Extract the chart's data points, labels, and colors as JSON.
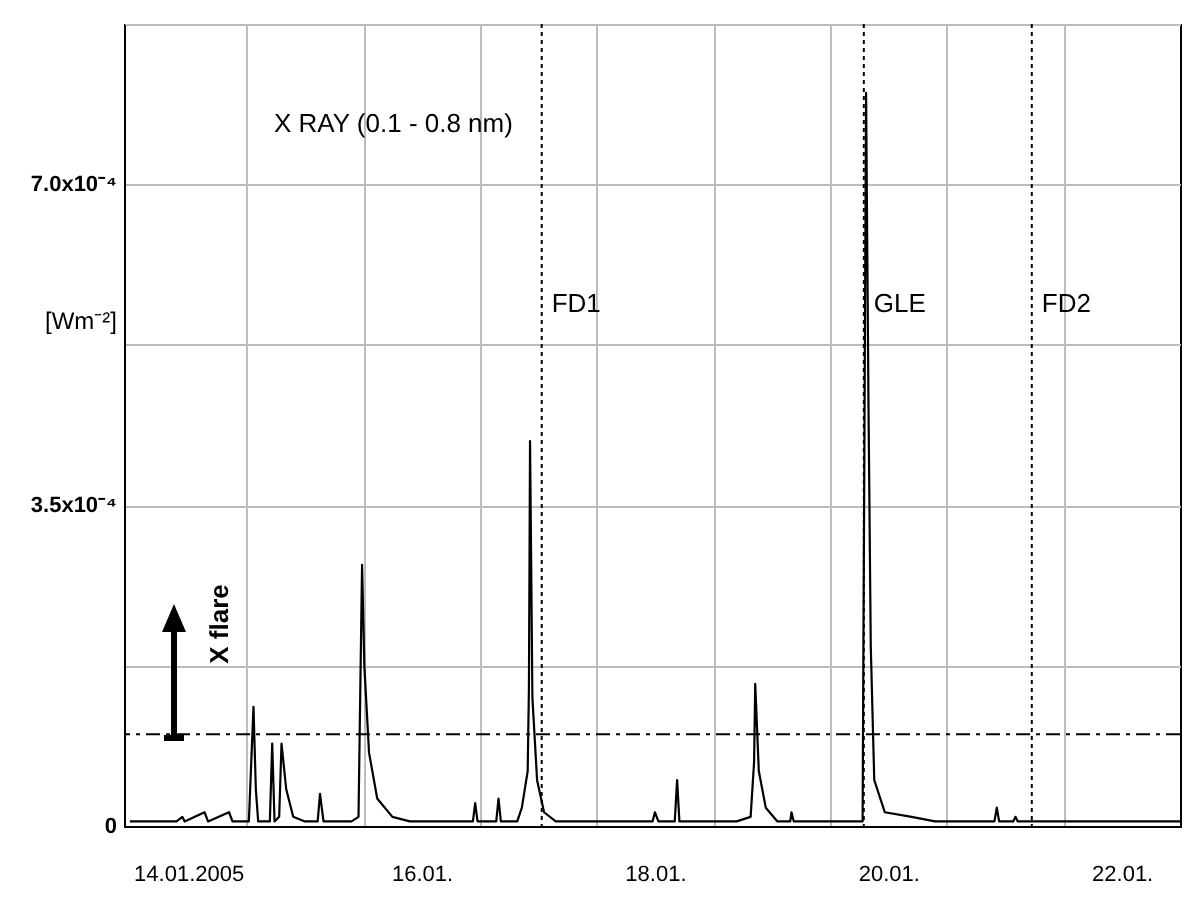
{
  "chart_data": {
    "type": "line",
    "title": "X RAY (0.1 - 0.8 nm)",
    "ylabel": "[Wm⁻²]",
    "x": [
      "2005-01-13T12:00",
      "2005-01-13T21:36",
      "2005-01-13T22:48",
      "2005-01-13T23:17",
      "2005-01-14T03:22",
      "2005-01-14T04:05",
      "2005-01-14T08:24",
      "2005-01-14T09:07",
      "2005-01-14T12:29",
      "2005-01-14T13:26",
      "2005-01-14T13:55",
      "2005-01-14T14:24",
      "2005-01-14T16:48",
      "2005-01-14T17:17",
      "2005-01-14T17:46",
      "2005-01-14T18:43",
      "2005-01-14T19:12",
      "2005-01-14T20:10",
      "2005-01-14T21:36",
      "2005-01-15T00:00",
      "2005-01-15T02:38",
      "2005-01-15T03:07",
      "2005-01-15T03:50",
      "2005-01-15T09:36",
      "2005-01-15T11:02",
      "2005-01-15T11:46",
      "2005-01-15T12:14",
      "2005-01-15T13:12",
      "2005-01-15T14:53",
      "2005-01-15T18:00",
      "2005-01-15T21:36",
      "2005-01-16T04:48",
      "2005-01-16T10:34",
      "2005-01-16T11:02",
      "2005-01-16T11:31",
      "2005-01-16T15:22",
      "2005-01-16T15:50",
      "2005-01-16T16:19",
      "2005-01-16T19:41",
      "2005-01-16T20:38",
      "2005-01-16T21:50",
      "2005-01-16T22:05",
      "2005-01-16T22:19",
      "2005-01-16T22:48",
      "2005-01-16T23:46",
      "2005-01-17T01:12",
      "2005-01-17T03:36",
      "2005-01-17T12:00",
      "2005-01-17T23:31",
      "2005-01-18T00:00",
      "2005-01-18T00:43",
      "2005-01-18T04:05",
      "2005-01-18T04:34",
      "2005-01-18T05:02",
      "2005-01-18T16:48",
      "2005-01-18T19:41",
      "2005-01-18T20:24",
      "2005-01-18T20:38",
      "2005-01-18T21:22",
      "2005-01-18T22:48",
      "2005-01-19T01:12",
      "2005-01-19T03:50",
      "2005-01-19T04:05",
      "2005-01-19T04:34",
      "2005-01-19T18:43",
      "2005-01-19T19:26",
      "2005-01-19T19:55",
      "2005-01-19T20:24",
      "2005-01-19T21:07",
      "2005-01-19T23:17",
      "2005-01-20T04:48",
      "2005-01-20T09:36",
      "2005-01-20T21:50",
      "2005-01-20T22:19",
      "2005-01-20T22:48",
      "2005-01-21T01:41",
      "2005-01-21T02:10",
      "2005-01-21T02:38",
      "2005-01-21T12:00",
      "2005-01-22T12:00"
    ],
    "series": [
      {
        "color": "#000000",
        "values": [
          5e-06,
          5e-06,
          1e-05,
          5e-06,
          1.5e-05,
          5e-06,
          1.5e-05,
          5e-06,
          5e-06,
          0.00013,
          4e-05,
          5e-06,
          5e-06,
          9e-05,
          5e-06,
          1e-05,
          9e-05,
          4e-05,
          1e-05,
          5e-06,
          5e-06,
          3.5e-05,
          5e-06,
          5e-06,
          1e-05,
          0.000285,
          0.000175,
          8e-05,
          3e-05,
          1e-05,
          5e-06,
          5e-06,
          5e-06,
          2.5e-05,
          5e-06,
          5e-06,
          3e-05,
          5e-06,
          5e-06,
          2e-05,
          6e-05,
          0.00015,
          0.00042,
          0.00014,
          5e-05,
          1.5e-05,
          5e-06,
          5e-06,
          5e-06,
          1.5e-05,
          5e-06,
          5e-06,
          5e-05,
          5e-06,
          5e-06,
          1e-05,
          7e-05,
          0.000155,
          6e-05,
          2e-05,
          5e-06,
          5e-06,
          1.5e-05,
          5e-06,
          5e-06,
          0.0008,
          0.000465,
          0.000195,
          5e-05,
          1.5e-05,
          1e-05,
          5e-06,
          5e-06,
          2e-05,
          5e-06,
          5e-06,
          1e-05,
          5e-06,
          5e-06,
          5e-06
        ]
      }
    ],
    "xlim": [
      "2005-01-13T10:48",
      "2005-01-22T12:00"
    ],
    "xticks": [
      {
        "value": "2005-01-14",
        "label": "14.01.2005"
      },
      {
        "value": "2005-01-14T12:00",
        "label": null
      },
      {
        "value": "2005-01-15T12:00",
        "label": null
      },
      {
        "value": "2005-01-16",
        "label": "16.01."
      },
      {
        "value": "2005-01-16T12:00",
        "label": null
      },
      {
        "value": "2005-01-17T12:00",
        "label": null
      },
      {
        "value": "2005-01-18",
        "label": "18.01."
      },
      {
        "value": "2005-01-18T12:00",
        "label": null
      },
      {
        "value": "2005-01-19T12:00",
        "label": null
      },
      {
        "value": "2005-01-20",
        "label": "20.01."
      },
      {
        "value": "2005-01-20T12:00",
        "label": null
      },
      {
        "value": "2005-01-21T12:00",
        "label": null
      },
      {
        "value": "2005-01-22",
        "label": "22.01."
      }
    ],
    "ylim": [
      0,
      0.000875
    ],
    "yticks": [
      {
        "value": 0,
        "label": "0"
      },
      {
        "value": 0.000175,
        "label": null
      },
      {
        "value": 0.00035,
        "label": "3.5x10⁻⁴"
      },
      {
        "value": 0.000525,
        "label": null
      },
      {
        "value": 0.0007,
        "label": "7.0x10⁻⁴"
      },
      {
        "value": 0.000875,
        "label": null
      }
    ],
    "ref_lines": [
      {
        "axis": "x",
        "value": "2005-01-17T00:43",
        "label": "FD1",
        "line_style": "dotted"
      },
      {
        "axis": "x",
        "value": "2005-01-19T18:58",
        "label": "GLE",
        "line_style": "dotted"
      },
      {
        "axis": "x",
        "value": "2005-01-21T05:31",
        "label": "FD2",
        "line_style": "dotted"
      },
      {
        "axis": "y",
        "value": 0.0001,
        "label": "X flare",
        "line_style": "dashed"
      }
    ],
    "grid": true
  }
}
